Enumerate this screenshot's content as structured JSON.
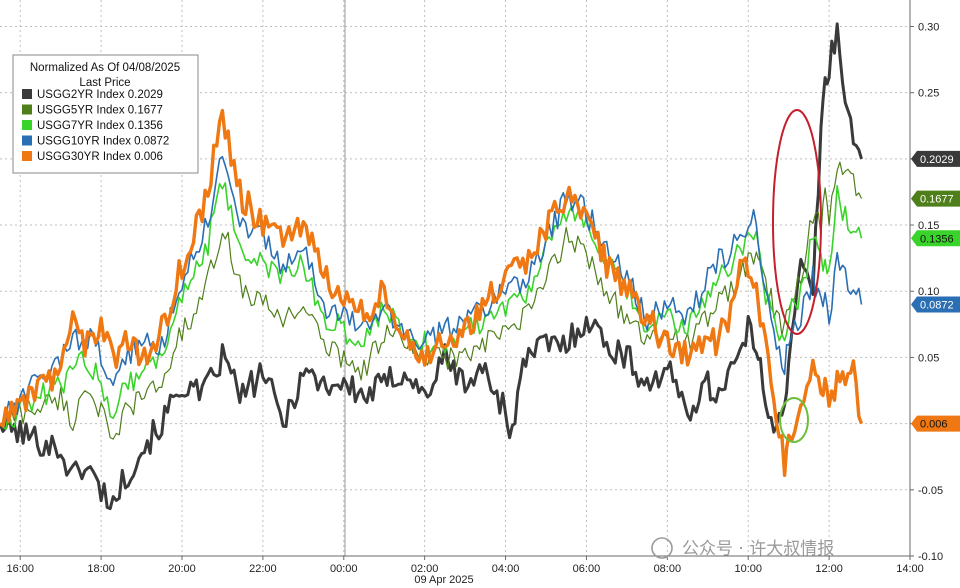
{
  "chart_data": {
    "type": "line",
    "legend": {
      "title": "Normalized As Of 04/08/2025",
      "subtitle": "Last Price",
      "placement": "top-left"
    },
    "x_ticks": [
      "16:00",
      "18:00",
      "20:00",
      "22:00",
      "00:00",
      "02:00",
      "04:00",
      "06:00",
      "08:00",
      "10:00",
      "12:00",
      "14:00"
    ],
    "x_axis_label": "09 Apr 2025",
    "x_range": [
      15.5,
      38
    ],
    "ylim": [
      -0.1,
      0.32
    ],
    "y_ticks": [
      -0.1,
      -0.05,
      0.0,
      0.05,
      0.1,
      0.15,
      0.2,
      0.25,
      0.3
    ],
    "y_tick_labels": [
      "-0.10",
      "-0.05",
      "0.00",
      "0.05",
      "0.10",
      "0.15",
      "0.20",
      "0.25",
      "0.30"
    ],
    "series": [
      {
        "name": "USGG2YR Index",
        "legend_label": "USGG2YR Index  0.2029",
        "last_label": "0.2029",
        "color": "#3a3a3a",
        "x": [
          15.5,
          17.0,
          17.3,
          17.6,
          18.0,
          18.3,
          18.6,
          19.0,
          19.5,
          20.0,
          20.5,
          21.0,
          21.5,
          22.0,
          22.5,
          23.0,
          23.5,
          24.0,
          24.5,
          25.0,
          25.5,
          26.0,
          26.5,
          27.0,
          27.5,
          28.0,
          28.1,
          28.5,
          29.0,
          29.5,
          30.0,
          30.5,
          31.0,
          31.5,
          32.0,
          32.5,
          33.0,
          33.2,
          33.5,
          33.8,
          34.0,
          34.2,
          34.3,
          34.5,
          34.7,
          34.9,
          35.0,
          35.3,
          35.6,
          35.8,
          35.9,
          36.0,
          36.2,
          36.4,
          36.6,
          36.8
        ],
        "y": [
          0.0,
          -0.02,
          -0.04,
          -0.03,
          -0.05,
          -0.06,
          -0.04,
          -0.02,
          0.0,
          0.03,
          0.02,
          0.05,
          0.02,
          0.04,
          0.0,
          0.04,
          0.03,
          0.03,
          0.02,
          0.03,
          0.04,
          0.02,
          0.05,
          0.03,
          0.04,
          0.01,
          -0.01,
          0.05,
          0.06,
          0.06,
          0.08,
          0.06,
          0.05,
          0.03,
          0.04,
          0.01,
          0.03,
          0.02,
          0.04,
          0.05,
          0.07,
          0.06,
          0.04,
          0.01,
          0.0,
          0.02,
          0.04,
          0.12,
          0.1,
          0.22,
          0.26,
          0.27,
          0.3,
          0.24,
          0.22,
          0.2
        ]
      },
      {
        "name": "USGG5YR Index",
        "legend_label": "USGG5YR Index  0.1677",
        "last_label": "0.1677",
        "color": "#4f7f1a",
        "x": [
          15.5,
          17.0,
          17.3,
          17.6,
          18.0,
          18.3,
          18.6,
          19.0,
          19.5,
          20.0,
          20.5,
          21.0,
          21.5,
          22.0,
          22.5,
          23.0,
          23.5,
          24.0,
          24.5,
          25.0,
          25.5,
          26.0,
          26.5,
          27.0,
          27.5,
          28.0,
          28.5,
          29.0,
          29.5,
          30.0,
          30.5,
          31.0,
          31.5,
          32.0,
          32.5,
          33.0,
          33.2,
          33.5,
          33.8,
          34.0,
          34.2,
          34.3,
          34.5,
          34.7,
          34.9,
          35.0,
          35.3,
          35.6,
          35.8,
          35.9,
          36.0,
          36.2,
          36.4,
          36.6,
          36.8
        ],
        "y": [
          0.0,
          0.02,
          0.0,
          0.03,
          0.01,
          -0.02,
          0.01,
          0.02,
          0.03,
          0.07,
          0.09,
          0.15,
          0.1,
          0.09,
          0.08,
          0.09,
          0.06,
          0.05,
          0.04,
          0.07,
          0.06,
          0.05,
          0.05,
          0.05,
          0.06,
          0.07,
          0.08,
          0.11,
          0.14,
          0.13,
          0.1,
          0.08,
          0.06,
          0.07,
          0.06,
          0.08,
          0.09,
          0.1,
          0.11,
          0.12,
          0.13,
          0.12,
          0.1,
          0.08,
          0.07,
          0.09,
          0.11,
          0.16,
          0.15,
          0.17,
          0.15,
          0.2,
          0.19,
          0.18,
          0.17
        ]
      },
      {
        "name": "USGG7YR Index",
        "legend_label": "USGG7YR Index  0.1356",
        "last_label": "0.1356",
        "color": "#39d42a",
        "x": [
          15.5,
          17.0,
          17.3,
          17.6,
          18.0,
          18.3,
          18.6,
          19.0,
          19.5,
          20.0,
          20.5,
          21.0,
          21.5,
          22.0,
          22.5,
          23.0,
          23.5,
          24.0,
          24.5,
          25.0,
          25.5,
          26.0,
          26.5,
          27.0,
          27.5,
          28.0,
          28.5,
          29.0,
          29.5,
          30.0,
          30.5,
          31.0,
          31.5,
          32.0,
          32.5,
          33.0,
          33.2,
          33.5,
          33.8,
          34.0,
          34.2,
          34.3,
          34.5,
          34.7,
          34.9,
          35.0,
          35.3,
          35.6,
          35.8,
          35.9,
          36.0,
          36.2,
          36.4,
          36.6,
          36.8
        ],
        "y": [
          0.0,
          0.03,
          0.04,
          0.05,
          0.03,
          0.01,
          0.03,
          0.04,
          0.05,
          0.1,
          0.12,
          0.18,
          0.13,
          0.12,
          0.11,
          0.12,
          0.08,
          0.07,
          0.06,
          0.09,
          0.07,
          0.06,
          0.06,
          0.07,
          0.08,
          0.09,
          0.1,
          0.13,
          0.16,
          0.15,
          0.12,
          0.1,
          0.07,
          0.08,
          0.07,
          0.1,
          0.11,
          0.12,
          0.13,
          0.14,
          0.14,
          0.12,
          0.09,
          0.07,
          0.06,
          0.08,
          0.1,
          0.14,
          0.12,
          0.13,
          0.11,
          0.17,
          0.16,
          0.15,
          0.14
        ]
      },
      {
        "name": "USGG10YR Index",
        "legend_label": "USGG10YR Index  0.0872",
        "last_label": "0.0872",
        "color": "#2a6fb3",
        "x": [
          15.5,
          17.0,
          17.3,
          17.6,
          18.0,
          18.3,
          18.6,
          19.0,
          19.5,
          20.0,
          20.5,
          21.0,
          21.5,
          22.0,
          22.5,
          23.0,
          23.5,
          24.0,
          24.5,
          25.0,
          25.5,
          26.0,
          26.5,
          27.0,
          27.5,
          28.0,
          28.5,
          29.0,
          29.5,
          30.0,
          30.5,
          31.0,
          31.5,
          32.0,
          32.5,
          33.0,
          33.2,
          33.5,
          33.8,
          34.0,
          34.2,
          34.3,
          34.5,
          34.7,
          34.9,
          35.0,
          35.3,
          35.6,
          35.8,
          35.9,
          36.0,
          36.2,
          36.4,
          36.6,
          36.8
        ],
        "y": [
          0.0,
          0.05,
          0.06,
          0.07,
          0.05,
          0.03,
          0.05,
          0.06,
          0.06,
          0.11,
          0.14,
          0.2,
          0.15,
          0.14,
          0.12,
          0.13,
          0.09,
          0.08,
          0.07,
          0.09,
          0.07,
          0.06,
          0.07,
          0.08,
          0.09,
          0.1,
          0.11,
          0.14,
          0.17,
          0.16,
          0.13,
          0.11,
          0.08,
          0.09,
          0.08,
          0.11,
          0.12,
          0.13,
          0.14,
          0.15,
          0.16,
          0.13,
          0.09,
          0.06,
          0.04,
          0.06,
          0.08,
          0.11,
          0.09,
          0.1,
          0.08,
          0.12,
          0.11,
          0.1,
          0.09
        ]
      },
      {
        "name": "USGG30YR Index",
        "legend_label": "USGG30YR Index  0.006",
        "last_label": "0.006",
        "color": "#f07812",
        "x": [
          15.5,
          17.0,
          17.3,
          17.6,
          18.0,
          18.3,
          18.6,
          19.0,
          19.5,
          20.0,
          20.5,
          21.0,
          21.5,
          22.0,
          22.5,
          23.0,
          23.5,
          24.0,
          24.5,
          25.0,
          25.5,
          26.0,
          26.5,
          27.0,
          27.5,
          28.0,
          28.5,
          29.0,
          29.5,
          30.0,
          30.5,
          31.0,
          31.5,
          32.0,
          32.5,
          33.0,
          33.2,
          33.5,
          33.8,
          34.0,
          34.2,
          34.3,
          34.5,
          34.7,
          34.9,
          35.0,
          35.3,
          35.6,
          35.8,
          35.9,
          36.0,
          36.2,
          36.4,
          36.6,
          36.8
        ],
        "y": [
          0.0,
          0.04,
          0.09,
          0.06,
          0.07,
          0.05,
          0.06,
          0.05,
          0.07,
          0.12,
          0.16,
          0.23,
          0.17,
          0.15,
          0.14,
          0.15,
          0.11,
          0.1,
          0.08,
          0.1,
          0.07,
          0.05,
          0.06,
          0.07,
          0.09,
          0.11,
          0.12,
          0.15,
          0.17,
          0.16,
          0.12,
          0.1,
          0.08,
          0.06,
          0.05,
          0.07,
          0.06,
          0.08,
          0.12,
          0.12,
          0.11,
          0.08,
          0.05,
          0.01,
          -0.03,
          -0.01,
          0.01,
          0.05,
          0.02,
          0.03,
          0.01,
          0.03,
          0.04,
          0.04,
          0.0
        ]
      }
    ]
  },
  "watermark": "公众号 · 许大叔情报",
  "colors": {
    "highlight_red": "#c41f2a",
    "highlight_green": "#6bbf3a",
    "gridline": "#bfbfbf"
  }
}
